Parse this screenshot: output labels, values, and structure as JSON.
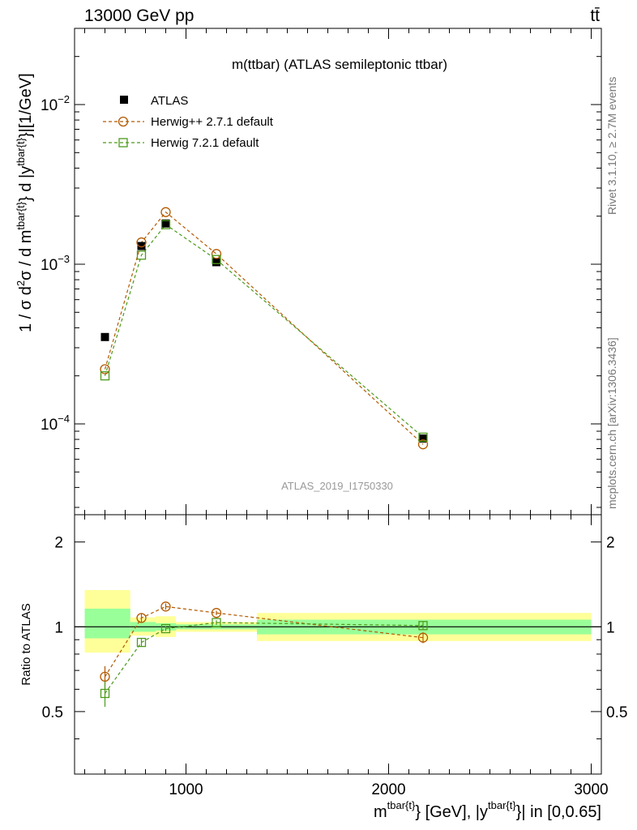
{
  "header": {
    "energy_label": "13000 GeV pp",
    "process_label": "tt̄"
  },
  "side_labels": {
    "rivet": "Rivet 3.1.10, ≥ 2.7M events",
    "mcplots": "mcplots.cern.ch [arXiv:1306.3436]"
  },
  "chart_data": [
    {
      "type": "line",
      "panel": "main",
      "scale": "log",
      "title": "m(ttbar) (ATLAS semileptonic ttbar)",
      "watermark": "ATLAS_2019_I1750330",
      "ylabel": {
        "p1": "1 / σ d",
        "p1_sup": "2",
        "p2": "σ  /  d m",
        "p2_sup": "tbar{t}",
        "p3": "} d |y",
        "p3_sup": "tbar{t}",
        "p4": "}|[1/GeV]"
      },
      "xlim": [
        450,
        3050
      ],
      "ylim": [
        2.7e-05,
        0.03
      ],
      "y_ticks": [
        {
          "value": 0.0001,
          "base": "10",
          "exp": "−4"
        },
        {
          "value": 0.001,
          "base": "10",
          "exp": "−3"
        },
        {
          "value": 0.01,
          "base": "10",
          "exp": "−2"
        }
      ],
      "legend_position": "top-left",
      "series": [
        {
          "name": "ATLAS",
          "color": "#000000",
          "marker": "filled-square",
          "x": [
            600,
            780,
            900,
            1150,
            2170
          ],
          "y": [
            0.00035,
            0.0013,
            0.0018,
            0.00103,
            8.1e-05
          ]
        },
        {
          "name": "Herwig++ 2.7.1 default",
          "color": "#b35900",
          "marker": "open-circle",
          "x": [
            600,
            780,
            900,
            1150,
            2170
          ],
          "y": [
            0.00022,
            0.00137,
            0.00212,
            0.00116,
            7.45e-05
          ]
        },
        {
          "name": "Herwig 7.2.1 default",
          "color": "#4c9a1c",
          "marker": "open-square",
          "x": [
            600,
            780,
            900,
            1150,
            2170
          ],
          "y": [
            0.0002,
            0.00114,
            0.00177,
            0.00107,
            8.25e-05
          ]
        }
      ]
    },
    {
      "type": "line",
      "panel": "ratio",
      "ylabel": "Ratio to ATLAS",
      "xlabel": {
        "p1": "m",
        "p1_sup": "tbar{t}",
        "p2": "} [GeV], |y",
        "p2_sup": "tbar{t}",
        "p3": "}| in [0,0.65]"
      },
      "xlim": [
        450,
        3050
      ],
      "ylim": [
        0.3,
        2.5
      ],
      "x_ticks": [
        1000,
        2000,
        3000
      ],
      "x_tick_labels": [
        "1000",
        "2000",
        "3000"
      ],
      "y_ticks": [
        0.5,
        1,
        2
      ],
      "y_tick_labels": [
        "0.5",
        "1",
        "2"
      ],
      "reference_line": 1,
      "uncertainty_bands": [
        {
          "x_low": 500,
          "x_high": 725,
          "yellow": [
            0.81,
            1.35
          ],
          "green": [
            0.91,
            1.16
          ]
        },
        {
          "x_low": 725,
          "x_high": 850,
          "yellow": [
            0.93,
            1.08
          ],
          "green": [
            0.96,
            1.04
          ]
        },
        {
          "x_low": 850,
          "x_high": 950,
          "yellow": [
            0.92,
            1.09
          ],
          "green": [
            0.97,
            1.03
          ]
        },
        {
          "x_low": 950,
          "x_high": 1350,
          "yellow": [
            0.96,
            1.04
          ],
          "green": [
            0.98,
            1.02
          ]
        },
        {
          "x_low": 1350,
          "x_high": 3000,
          "yellow": [
            0.89,
            1.12
          ],
          "green": [
            0.94,
            1.06
          ]
        }
      ],
      "series": [
        {
          "name": "Herwig++ 2.7.1 default",
          "color": "#b35900",
          "marker": "open-circle",
          "x": [
            600,
            780,
            900,
            1150,
            2170
          ],
          "y": [
            0.665,
            1.075,
            1.18,
            1.12,
            0.915
          ],
          "err": [
            0.06,
            0.04,
            0.03,
            0.02,
            0.04
          ]
        },
        {
          "name": "Herwig 7.2.1 default",
          "color": "#4c9a1c",
          "marker": "open-square",
          "x": [
            600,
            780,
            900,
            1150,
            2170
          ],
          "y": [
            0.58,
            0.88,
            0.985,
            1.035,
            1.01
          ],
          "err": [
            0.06,
            0.03,
            0.02,
            0.02,
            0.03
          ]
        }
      ]
    }
  ]
}
